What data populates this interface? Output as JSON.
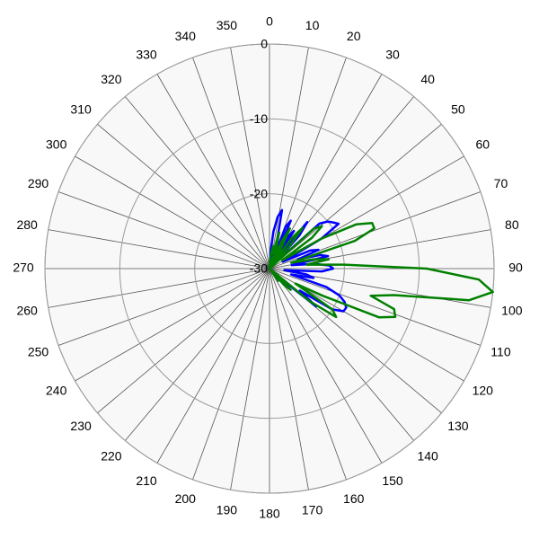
{
  "chart_data": {
    "type": "polar",
    "x": [
      0,
      3,
      6,
      9,
      12,
      15,
      18,
      21,
      24,
      27,
      30,
      33,
      36,
      39,
      42,
      45,
      48,
      51,
      54,
      57,
      60,
      63,
      66,
      69,
      72,
      75,
      78,
      81,
      84,
      87,
      90,
      93,
      96,
      99,
      102,
      105,
      108,
      111,
      114,
      117,
      120,
      123,
      126,
      129,
      132,
      135,
      138,
      141,
      144,
      147,
      150,
      153,
      156,
      159,
      162,
      165,
      168,
      171,
      174,
      177,
      180
    ],
    "series": [
      {
        "color": "#0000ff",
        "values": [
          -30,
          -28,
          -25,
          -23,
          -22,
          -26,
          -30,
          -24,
          -23,
          -28,
          -25,
          -24,
          -29,
          -22,
          -24,
          -29,
          -21,
          -20,
          -19.5,
          -19,
          -22,
          -28,
          -24,
          -23,
          -26,
          -23,
          -22,
          -27,
          -24,
          -22,
          -21.5,
          -23,
          -28,
          -25,
          -24,
          -27,
          -22,
          -20,
          -19,
          -18.5,
          -18.6,
          -20,
          -25,
          -22,
          -28,
          -30,
          -27,
          -30,
          -30,
          -30,
          -30,
          -30,
          -30,
          -30,
          -30,
          -30,
          -30,
          -30,
          -30,
          -30,
          -30
        ]
      },
      {
        "color": "#008000",
        "values": [
          -30,
          -29,
          -28,
          -27,
          -28,
          -25,
          -27,
          -30,
          -26,
          -24,
          -27,
          -30,
          -25,
          -23,
          -26,
          -30,
          -22,
          -21,
          -23,
          -28,
          -22,
          -17,
          -15,
          -15,
          -18,
          -27,
          -24,
          -22,
          -25,
          -20,
          -9,
          -2,
          0,
          -3,
          -13,
          -16,
          -12.5,
          -12,
          -14,
          -22,
          -26,
          -20,
          -19,
          -23,
          -30,
          -26,
          -27,
          -30,
          -28,
          -30,
          -30,
          -30,
          -30,
          -30,
          -30,
          -30,
          -30,
          -30,
          -30,
          -30,
          -30
        ]
      }
    ],
    "rlim": [
      -30,
      0
    ],
    "rticks": [
      0,
      -10,
      -20,
      -30
    ],
    "thetaticks": [
      0,
      10,
      20,
      30,
      40,
      50,
      60,
      70,
      80,
      90,
      100,
      110,
      120,
      130,
      140,
      150,
      160,
      170,
      180,
      190,
      200,
      210,
      220,
      230,
      240,
      250,
      260,
      270,
      280,
      290,
      300,
      310,
      320,
      330,
      340,
      350
    ]
  }
}
